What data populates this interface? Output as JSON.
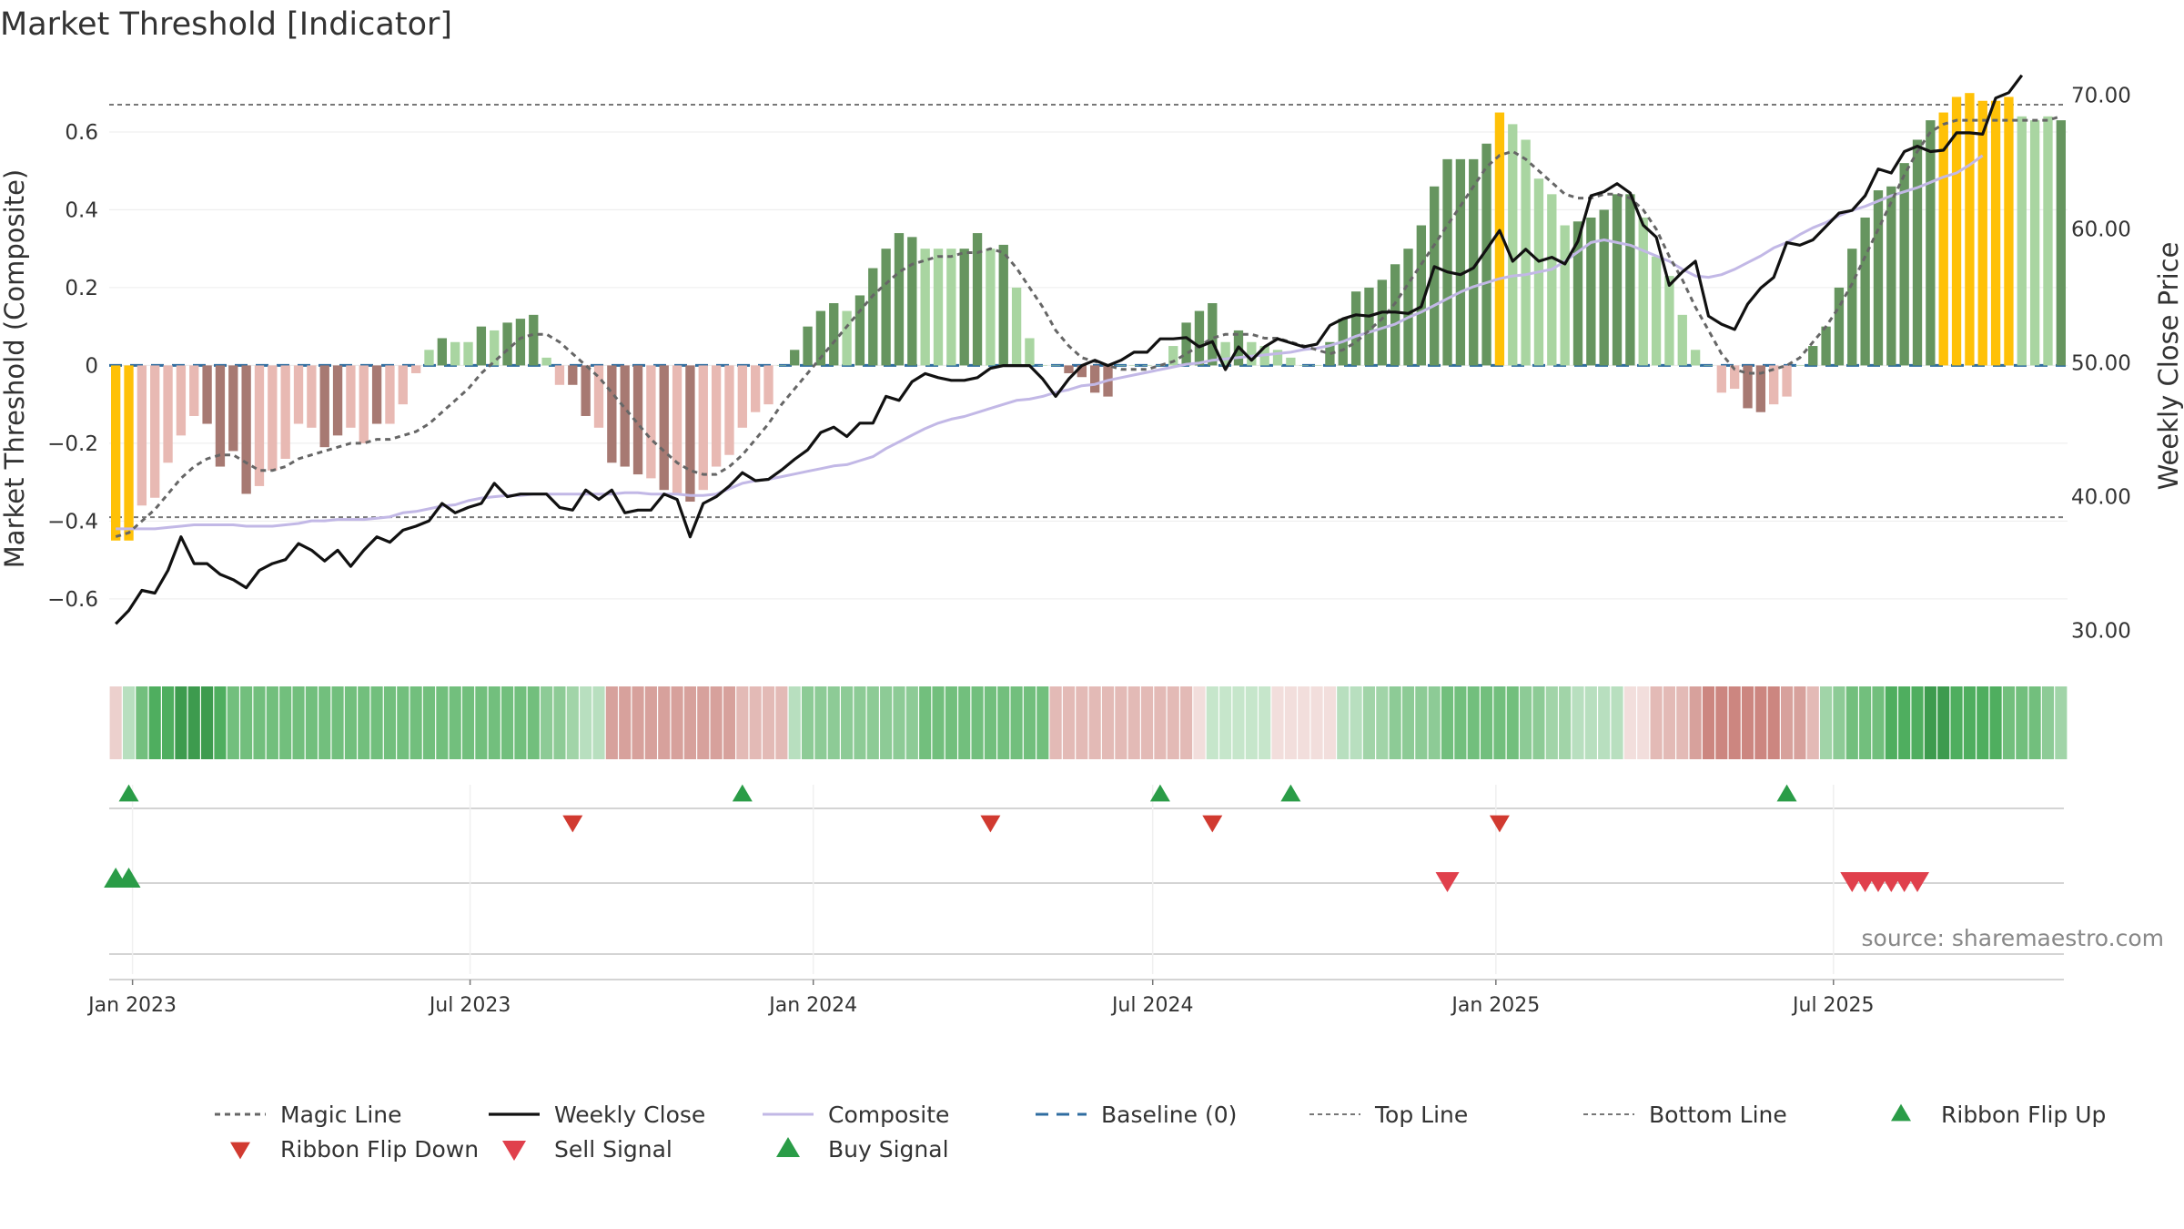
{
  "chart_data": {
    "type": "bar",
    "title": "Market Threshold [Indicator]",
    "ylabel_left": "Market Threshold (Composite)",
    "ylabel_right": "Weekly Close Price",
    "source": "source: sharemaestro.com",
    "left_ylim": [
      -0.75,
      0.78
    ],
    "left_ticks": [
      0.6,
      0.4,
      0.2,
      0,
      -0.2,
      -0.4,
      -0.6
    ],
    "left_tick_labels": [
      "0.6",
      "0.4",
      "0.2",
      "0",
      "−0.2",
      "−0.4",
      "−0.6"
    ],
    "right_ylim": [
      28.0,
      72.5
    ],
    "right_ticks": [
      70,
      60,
      50,
      40,
      30
    ],
    "right_tick_labels": [
      "70.00",
      "60.00",
      "50.00",
      "40.00",
      "30.00"
    ],
    "top_line": 0.67,
    "bottom_line": -0.39,
    "x_start": "2022-12-23",
    "x_ticks": [
      {
        "date": "2023-01-01",
        "label": "Jan 2023"
      },
      {
        "date": "2023-07-01",
        "label": "Jul 2023"
      },
      {
        "date": "2024-01-01",
        "label": "Jan 2024"
      },
      {
        "date": "2024-07-01",
        "label": "Jul 2024"
      },
      {
        "date": "2025-01-01",
        "label": "Jan 2025"
      },
      {
        "date": "2025-07-01",
        "label": "Jul 2025"
      }
    ],
    "composite_bars": [
      -0.45,
      -0.45,
      -0.36,
      -0.34,
      -0.25,
      -0.18,
      -0.13,
      -0.15,
      -0.26,
      -0.22,
      -0.33,
      -0.31,
      -0.27,
      -0.24,
      -0.15,
      -0.16,
      -0.21,
      -0.18,
      -0.16,
      -0.2,
      -0.15,
      -0.15,
      -0.1,
      -0.02,
      0.04,
      0.07,
      0.06,
      0.06,
      0.1,
      0.09,
      0.11,
      0.12,
      0.13,
      0.02,
      -0.05,
      -0.05,
      -0.13,
      -0.16,
      -0.25,
      -0.26,
      -0.28,
      -0.29,
      -0.32,
      -0.33,
      -0.35,
      -0.32,
      -0.26,
      -0.23,
      -0.16,
      -0.12,
      -0.1,
      0.0,
      0.04,
      0.1,
      0.14,
      0.16,
      0.14,
      0.18,
      0.25,
      0.3,
      0.34,
      0.33,
      0.3,
      0.3,
      0.3,
      0.3,
      0.34,
      0.3,
      0.31,
      0.2,
      0.07,
      0.0,
      0.0,
      -0.02,
      -0.03,
      -0.07,
      -0.08,
      0.0,
      0.0,
      0.0,
      0.0,
      0.05,
      0.11,
      0.14,
      0.16,
      0.06,
      0.09,
      0.06,
      0.05,
      0.04,
      0.02,
      0.0,
      0.0,
      0.06,
      0.12,
      0.19,
      0.2,
      0.22,
      0.26,
      0.3,
      0.36,
      0.46,
      0.53,
      0.53,
      0.53,
      0.57,
      0.65,
      0.62,
      0.58,
      0.48,
      0.44,
      0.36,
      0.37,
      0.38,
      0.4,
      0.44,
      0.44,
      0.38,
      0.28,
      0.23,
      0.13,
      0.04,
      0.0,
      -0.07,
      -0.06,
      -0.11,
      -0.12,
      -0.1,
      -0.08,
      0.0,
      0.05,
      0.1,
      0.2,
      0.3,
      0.38,
      0.45,
      0.46,
      0.52,
      0.58,
      0.63,
      0.65,
      0.69,
      0.7,
      0.68,
      0.68,
      0.69,
      0.64,
      0.63,
      0.64,
      0.63
    ],
    "bar_colors": [
      "#ffc107",
      "#ffc107",
      "#e8b9b3",
      "#e8b9b3",
      "#e8b9b3",
      "#e8b9b3",
      "#e8b9b3",
      "#a77972",
      "#a77972",
      "#a77972",
      "#a77972",
      "#e8b9b3",
      "#e8b9b3",
      "#e8b9b3",
      "#e8b9b3",
      "#e8b9b3",
      "#a77972",
      "#a77972",
      "#e8b9b3",
      "#e8b9b3",
      "#a77972",
      "#e8b9b3",
      "#e8b9b3",
      "#e8b9b3",
      "#a9d5a1",
      "#66955f",
      "#a9d5a1",
      "#a9d5a1",
      "#66955f",
      "#a9d5a1",
      "#66955f",
      "#66955f",
      "#66955f",
      "#a9d5a1",
      "#e8b9b3",
      "#a77972",
      "#a77972",
      "#e8b9b3",
      "#a77972",
      "#a77972",
      "#a77972",
      "#e8b9b3",
      "#a77972",
      "#e8b9b3",
      "#a77972",
      "#e8b9b3",
      "#e8b9b3",
      "#e8b9b3",
      "#e8b9b3",
      "#e8b9b3",
      "#e8b9b3",
      "#a9d5a1",
      "#66955f",
      "#66955f",
      "#66955f",
      "#66955f",
      "#a9d5a1",
      "#66955f",
      "#66955f",
      "#66955f",
      "#66955f",
      "#66955f",
      "#a9d5a1",
      "#a9d5a1",
      "#a9d5a1",
      "#66955f",
      "#66955f",
      "#a9d5a1",
      "#66955f",
      "#a9d5a1",
      "#a9d5a1",
      "#a9d5a1",
      "#a9d5a1",
      "#a77972",
      "#a77972",
      "#a77972",
      "#a77972",
      "#a9d5a1",
      "#a9d5a1",
      "#a9d5a1",
      "#a9d5a1",
      "#a9d5a1",
      "#66955f",
      "#66955f",
      "#66955f",
      "#a9d5a1",
      "#66955f",
      "#a9d5a1",
      "#a9d5a1",
      "#a9d5a1",
      "#a9d5a1",
      "#a9d5a1",
      "#a9d5a1",
      "#66955f",
      "#66955f",
      "#66955f",
      "#66955f",
      "#66955f",
      "#66955f",
      "#66955f",
      "#66955f",
      "#66955f",
      "#66955f",
      "#66955f",
      "#66955f",
      "#66955f",
      "#ffc107",
      "#a9d5a1",
      "#a9d5a1",
      "#a9d5a1",
      "#a9d5a1",
      "#a9d5a1",
      "#66955f",
      "#66955f",
      "#66955f",
      "#66955f",
      "#66955f",
      "#a9d5a1",
      "#a9d5a1",
      "#a9d5a1",
      "#a9d5a1",
      "#a9d5a1",
      "#a9d5a1",
      "#e8b9b3",
      "#e8b9b3",
      "#a77972",
      "#a77972",
      "#e8b9b3",
      "#e8b9b3",
      "#a9d5a1",
      "#66955f",
      "#66955f",
      "#66955f",
      "#66955f",
      "#66955f",
      "#66955f",
      "#66955f",
      "#66955f",
      "#66955f",
      "#66955f",
      "#ffc107",
      "#ffc107",
      "#ffc107",
      "#ffc107",
      "#ffc107",
      "#ffc107",
      "#a9d5a1",
      "#a9d5a1",
      "#a9d5a1",
      "#66955f"
    ],
    "magic_line": [
      -0.44,
      -0.43,
      -0.4,
      -0.37,
      -0.33,
      -0.29,
      -0.26,
      -0.24,
      -0.23,
      -0.23,
      -0.25,
      -0.27,
      -0.27,
      -0.26,
      -0.24,
      -0.23,
      -0.22,
      -0.21,
      -0.2,
      -0.2,
      -0.19,
      -0.19,
      -0.18,
      -0.17,
      -0.15,
      -0.12,
      -0.09,
      -0.06,
      -0.02,
      0.01,
      0.04,
      0.07,
      0.08,
      0.08,
      0.06,
      0.03,
      0.0,
      -0.03,
      -0.07,
      -0.11,
      -0.15,
      -0.19,
      -0.22,
      -0.25,
      -0.27,
      -0.28,
      -0.28,
      -0.26,
      -0.23,
      -0.19,
      -0.15,
      -0.1,
      -0.06,
      -0.02,
      0.02,
      0.06,
      0.1,
      0.14,
      0.18,
      0.21,
      0.24,
      0.26,
      0.27,
      0.28,
      0.28,
      0.29,
      0.29,
      0.3,
      0.29,
      0.25,
      0.2,
      0.15,
      0.09,
      0.05,
      0.02,
      0.01,
      0.0,
      -0.01,
      -0.01,
      -0.01,
      0.0,
      0.01,
      0.03,
      0.05,
      0.07,
      0.08,
      0.08,
      0.08,
      0.07,
      0.07,
      0.06,
      0.05,
      0.04,
      0.03,
      0.04,
      0.06,
      0.09,
      0.12,
      0.16,
      0.21,
      0.26,
      0.31,
      0.36,
      0.41,
      0.46,
      0.51,
      0.54,
      0.55,
      0.53,
      0.5,
      0.47,
      0.44,
      0.43,
      0.43,
      0.44,
      0.44,
      0.43,
      0.4,
      0.35,
      0.28,
      0.22,
      0.15,
      0.09,
      0.03,
      -0.01,
      -0.02,
      -0.02,
      -0.01,
      0.0,
      0.02,
      0.06,
      0.1,
      0.15,
      0.21,
      0.28,
      0.35,
      0.42,
      0.49,
      0.55,
      0.6,
      0.62,
      0.63,
      0.63,
      0.63,
      0.63,
      0.63,
      0.63,
      0.63,
      0.63,
      0.64
    ],
    "weekly_close": [
      30.5,
      31.5,
      33.0,
      32.8,
      34.5,
      37.0,
      35.0,
      35.0,
      34.2,
      33.8,
      33.2,
      34.5,
      35.0,
      35.3,
      36.5,
      36.0,
      35.2,
      36.0,
      34.8,
      36.0,
      37.0,
      36.6,
      37.5,
      37.8,
      38.2,
      39.5,
      38.8,
      39.2,
      39.5,
      41.0,
      40.0,
      40.2,
      40.2,
      40.2,
      39.2,
      39.0,
      40.5,
      39.8,
      40.5,
      38.8,
      39.0,
      39.0,
      40.2,
      39.8,
      37.0,
      39.5,
      40.0,
      40.8,
      41.8,
      41.2,
      41.3,
      42.0,
      42.8,
      43.5,
      44.8,
      45.2,
      44.5,
      45.5,
      45.5,
      47.5,
      47.2,
      48.6,
      49.2,
      48.9,
      48.7,
      48.7,
      48.9,
      49.6,
      49.8,
      49.8,
      49.8,
      48.8,
      47.5,
      48.8,
      49.8,
      50.2,
      49.8,
      50.2,
      50.8,
      50.8,
      51.8,
      51.8,
      51.9,
      51.2,
      51.6,
      49.5,
      51.2,
      50.2,
      51.2,
      51.8,
      51.5,
      51.2,
      51.4,
      52.8,
      53.3,
      53.6,
      53.5,
      53.8,
      53.8,
      53.7,
      54.2,
      57.2,
      56.8,
      56.6,
      57.1,
      58.5,
      59.9,
      57.6,
      58.5,
      57.6,
      57.9,
      57.4,
      59.1,
      62.5,
      62.8,
      63.4,
      62.7,
      60.3,
      59.4,
      55.8,
      56.8,
      57.6,
      53.5,
      52.9,
      52.5,
      54.4,
      55.6,
      56.4,
      59.0,
      58.8,
      59.2,
      60.2,
      61.2,
      61.4,
      62.5,
      64.5,
      64.2,
      65.8,
      66.2,
      65.8,
      65.9,
      67.2,
      67.2,
      67.1,
      69.8,
      70.2,
      71.5
    ],
    "composite_price": [
      37.6,
      37.6,
      37.6,
      37.6,
      37.7,
      37.8,
      37.9,
      37.9,
      37.9,
      37.9,
      37.8,
      37.8,
      37.8,
      37.9,
      38.0,
      38.2,
      38.2,
      38.3,
      38.3,
      38.3,
      38.4,
      38.5,
      38.8,
      38.9,
      39.1,
      39.3,
      39.4,
      39.7,
      39.9,
      40.0,
      40.1,
      40.1,
      40.2,
      40.2,
      40.2,
      40.2,
      40.2,
      40.2,
      40.2,
      40.3,
      40.3,
      40.2,
      40.2,
      40.2,
      40.1,
      40.1,
      40.2,
      40.6,
      41.0,
      41.2,
      41.3,
      41.5,
      41.7,
      41.9,
      42.1,
      42.3,
      42.4,
      42.7,
      43.0,
      43.6,
      44.1,
      44.6,
      45.1,
      45.5,
      45.8,
      46.0,
      46.3,
      46.6,
      46.9,
      47.2,
      47.3,
      47.5,
      47.8,
      48.0,
      48.3,
      48.4,
      48.7,
      48.9,
      49.1,
      49.3,
      49.5,
      49.7,
      49.9,
      50.0,
      50.2,
      50.3,
      50.4,
      50.5,
      50.6,
      50.7,
      50.8,
      51.0,
      51.1,
      51.3,
      51.6,
      52.0,
      52.3,
      52.6,
      52.9,
      53.4,
      53.8,
      54.3,
      54.8,
      55.3,
      55.7,
      56.0,
      56.3,
      56.5,
      56.6,
      56.8,
      57.0,
      57.6,
      58.3,
      59.0,
      59.2,
      59.0,
      58.8,
      58.4,
      58.0,
      57.6,
      57.0,
      56.5,
      56.4,
      56.6,
      57.0,
      57.5,
      58.0,
      58.6,
      59.0,
      59.6,
      60.1,
      60.5,
      61.0,
      61.4,
      61.7,
      62.1,
      62.5,
      62.8,
      63.1,
      63.5,
      63.9,
      64.2,
      64.8,
      65.5
    ],
    "ribbon_colors": [
      "#ecd0cd",
      "#b8dfbf",
      "#72bf7d",
      "#4fae5f",
      "#4fae5f",
      "#3d9b4e",
      "#3d9b4e",
      "#3d9b4e",
      "#4fae5f",
      "#72bf7d",
      "#72bf7d",
      "#72bf7d",
      "#72bf7d",
      "#72bf7d",
      "#72bf7d",
      "#72bf7d",
      "#72bf7d",
      "#72bf7d",
      "#72bf7d",
      "#72bf7d",
      "#72bf7d",
      "#72bf7d",
      "#72bf7d",
      "#72bf7d",
      "#72bf7d",
      "#72bf7d",
      "#72bf7d",
      "#72bf7d",
      "#72bf7d",
      "#72bf7d",
      "#72bf7d",
      "#72bf7d",
      "#72bf7d",
      "#8dcb96",
      "#8dcb96",
      "#a1d4a8",
      "#b8dfbf",
      "#b8dfbf",
      "#d7a19c",
      "#d7a19c",
      "#d7a19c",
      "#d7a19c",
      "#d7a19c",
      "#d7a19c",
      "#d7a19c",
      "#d7a19c",
      "#d7a19c",
      "#d7a19c",
      "#e3bab6",
      "#e3bab6",
      "#e3bab6",
      "#e3bab6",
      "#b8dfbf",
      "#8dcb96",
      "#8dcb96",
      "#8dcb96",
      "#8dcb96",
      "#8dcb96",
      "#8dcb96",
      "#8dcb96",
      "#8dcb96",
      "#8dcb96",
      "#72bf7d",
      "#72bf7d",
      "#72bf7d",
      "#72bf7d",
      "#72bf7d",
      "#72bf7d",
      "#72bf7d",
      "#72bf7d",
      "#72bf7d",
      "#72bf7d",
      "#e3bab6",
      "#e3bab6",
      "#e3bab6",
      "#e3bab6",
      "#e3bab6",
      "#e3bab6",
      "#e3bab6",
      "#e3bab6",
      "#e3bab6",
      "#e3bab6",
      "#e3bab6",
      "#f2dedc",
      "#c6e6cb",
      "#c6e6cb",
      "#c6e6cb",
      "#c6e6cb",
      "#c6e6cb",
      "#f2dedc",
      "#f2dedc",
      "#f2dedc",
      "#f2dedc",
      "#f2dedc",
      "#b8dfbf",
      "#b8dfbf",
      "#a1d4a8",
      "#a1d4a8",
      "#8dcb96",
      "#8dcb96",
      "#8dcb96",
      "#8dcb96",
      "#72bf7d",
      "#72bf7d",
      "#72bf7d",
      "#72bf7d",
      "#72bf7d",
      "#72bf7d",
      "#8dcb96",
      "#8dcb96",
      "#a1d4a8",
      "#a1d4a8",
      "#b8dfbf",
      "#b8dfbf",
      "#b8dfbf",
      "#b8dfbf",
      "#f2dedc",
      "#f2dedc",
      "#e3bab6",
      "#e3bab6",
      "#e3bab6",
      "#d7a19c",
      "#cc8680",
      "#cc8680",
      "#cc8680",
      "#cc8680",
      "#cc8680",
      "#cc8680",
      "#d7a19c",
      "#d7a19c",
      "#e3bab6",
      "#a1d4a8",
      "#8dcb96",
      "#72bf7d",
      "#72bf7d",
      "#72bf7d",
      "#4fae5f",
      "#4fae5f",
      "#4fae5f",
      "#3d9b4e",
      "#3d9b4e",
      "#4fae5f",
      "#4fae5f",
      "#4fae5f",
      "#4fae5f",
      "#72bf7d",
      "#72bf7d",
      "#72bf7d",
      "#8dcb96",
      "#a1d4a8"
    ],
    "ribbon_flip_up": [
      1,
      48,
      80,
      90,
      128
    ],
    "ribbon_flip_down": [
      35,
      67,
      84,
      106
    ],
    "buy_signal": [
      0,
      1
    ],
    "sell_signal": [
      102,
      133,
      134,
      135,
      136,
      137,
      138
    ],
    "legend": [
      {
        "key": "magic",
        "label": "Magic Line"
      },
      {
        "key": "close",
        "label": "Weekly Close"
      },
      {
        "key": "composite",
        "label": "Composite"
      },
      {
        "key": "baseline",
        "label": "Baseline (0)"
      },
      {
        "key": "top",
        "label": "Top Line"
      },
      {
        "key": "bottom",
        "label": "Bottom Line"
      },
      {
        "key": "flipup",
        "label": "Ribbon Flip Up"
      },
      {
        "key": "flipdown",
        "label": "Ribbon Flip Down"
      },
      {
        "key": "sell",
        "label": "Sell Signal"
      },
      {
        "key": "buy",
        "label": "Buy Signal"
      }
    ],
    "colors": {
      "magic": "#666666",
      "close": "#111111",
      "composite": "#c2b8e6",
      "baseline": "#2f6da0",
      "thresholds": "#777777",
      "flip_up": "#2a9c47",
      "flip_down": "#d13a30",
      "sell": "#e0404c",
      "buy": "#2a9c47"
    }
  }
}
